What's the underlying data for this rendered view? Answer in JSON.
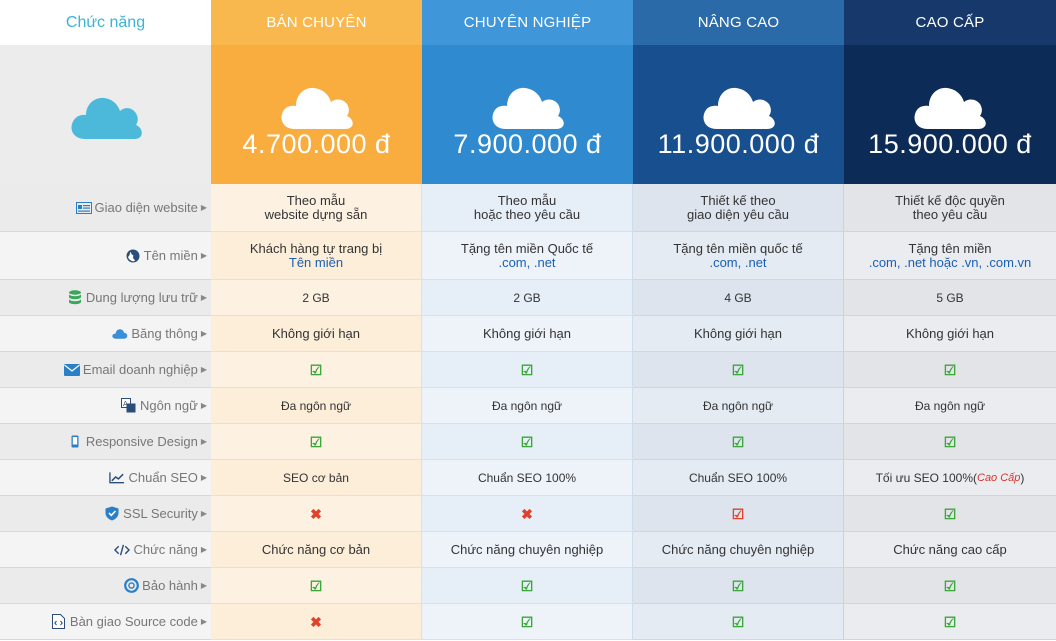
{
  "header": {
    "feature_label": "Chức năng",
    "plans": [
      {
        "name": "BÁN CHUYÊN",
        "price": "4.700.000 đ"
      },
      {
        "name": "CHUYÊN NGHIỆP",
        "price": "7.900.000 đ"
      },
      {
        "name": "NÂNG CAO",
        "price": "11.900.000 đ"
      },
      {
        "name": "CAO CẤP",
        "price": "15.900.000 đ"
      }
    ]
  },
  "colors": {
    "plan1": "#f9ad3f",
    "plan2": "#2f8ad0",
    "plan3": "#184f8e",
    "plan4": "#0c2b57",
    "feature_text": "#3bb3d8"
  },
  "rows": [
    {
      "label": "Giao diện website",
      "icon": "layout-icon",
      "cells": [
        [
          "Theo mẫu",
          "website dựng sẵn"
        ],
        [
          "Theo mẫu",
          "hoặc theo yêu cầu"
        ],
        [
          "Thiết kế theo",
          "giao diện yêu cầu"
        ],
        [
          "Thiết kế độc quyền",
          "theo yêu cầu"
        ]
      ]
    },
    {
      "label": "Tên miền",
      "icon": "globe-icon",
      "cells": [
        [
          "Khách hàng tự trang bị",
          "Tên miền"
        ],
        [
          "Tặng tên miền Quốc tế",
          ".com, .net"
        ],
        [
          "Tặng tên miền quốc tế",
          ".com, .net"
        ],
        [
          "Tặng tên miền",
          ".com, .net hoặc .vn, .com.vn"
        ]
      ]
    },
    {
      "label": "Dung lượng lưu trữ",
      "icon": "database-icon",
      "cells": [
        "2 GB",
        "2 GB",
        "4 GB",
        "5 GB"
      ]
    },
    {
      "label": "Băng thông",
      "icon": "cloud-icon",
      "cells": [
        "Không giới hạn",
        "Không giới hạn",
        "Không giới hạn",
        "Không giới hạn"
      ]
    },
    {
      "label": "Email doanh nghiệp",
      "icon": "envelope-icon",
      "cells": [
        "yes",
        "yes",
        "yes",
        "yes"
      ]
    },
    {
      "label": "Ngôn ngữ",
      "icon": "language-icon",
      "cells": [
        "Đa ngôn ngữ",
        "Đa ngôn ngữ",
        "Đa ngôn ngữ",
        "Đa ngôn ngữ"
      ]
    },
    {
      "label": "Responsive Design",
      "icon": "mobile-icon",
      "cells": [
        "yes",
        "yes",
        "yes",
        "yes"
      ]
    },
    {
      "label": "Chuẩn SEO",
      "icon": "chart-line-icon",
      "cells": [
        "SEO cơ bản",
        "Chuẩn SEO 100%",
        "Chuẩn SEO 100%",
        "Tối ưu SEO 100%"
      ],
      "extra": "Cao Cấp"
    },
    {
      "label": "SSL Security",
      "icon": "shield-icon",
      "cells": [
        "no",
        "no",
        "no-check",
        "yes"
      ]
    },
    {
      "label": "Chức năng",
      "icon": "code-icon",
      "cells": [
        "Chức năng cơ bản",
        "Chức năng chuyên nghiệp",
        "Chức năng chuyên nghiệp",
        "Chức năng cao cấp"
      ]
    },
    {
      "label": "Bảo hành",
      "icon": "lifebuoy-icon",
      "cells": [
        "yes",
        "yes",
        "yes",
        "yes"
      ]
    },
    {
      "label": "Bàn giao Source code",
      "icon": "file-code-icon",
      "cells": [
        "no",
        "yes",
        "yes",
        "yes"
      ]
    }
  ]
}
